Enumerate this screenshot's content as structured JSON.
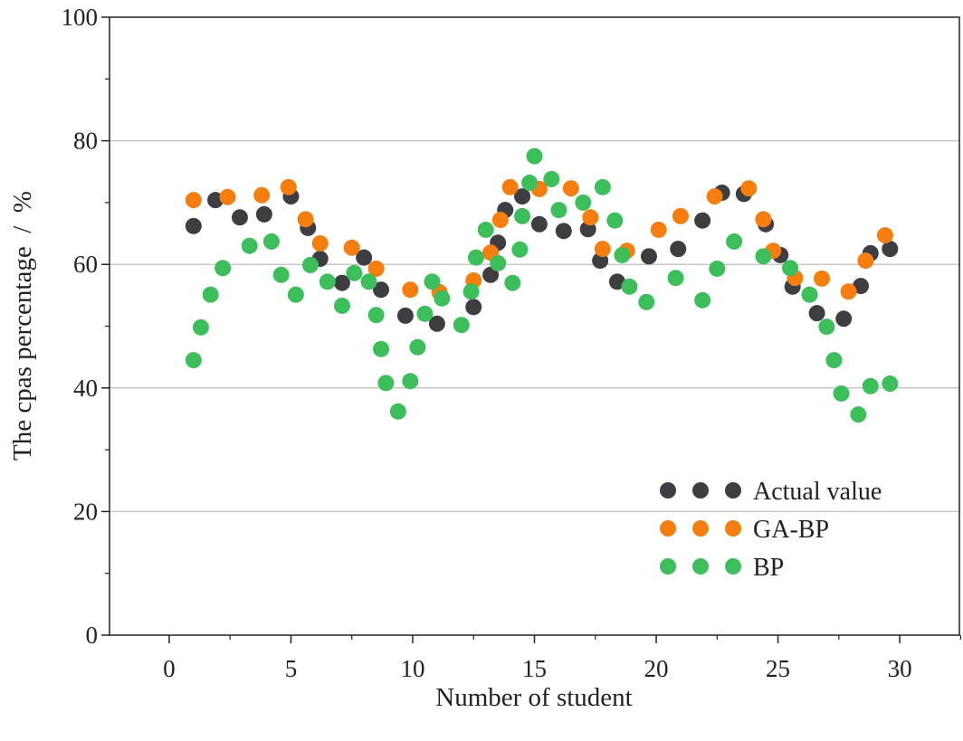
{
  "chart_data": {
    "type": "scatter",
    "title": "",
    "xlabel": "Number of student",
    "ylabel": "The cpas percentage  /  %",
    "xlim": [
      -2.45,
      32.45
    ],
    "ylim": [
      0,
      100
    ],
    "xticks": [
      0,
      5,
      10,
      15,
      20,
      25,
      30
    ],
    "yticks": [
      0,
      20,
      40,
      60,
      80,
      100
    ],
    "grid": "horizontal",
    "legend_position": "bottom-right",
    "series": [
      {
        "name": "Actual value",
        "color": "#3d3d42",
        "points": [
          [
            1.0,
            66.2
          ],
          [
            1.9,
            70.4
          ],
          [
            2.9,
            67.6
          ],
          [
            3.9,
            68.1
          ],
          [
            5.0,
            71.0
          ],
          [
            5.7,
            65.9
          ],
          [
            6.2,
            60.9
          ],
          [
            7.1,
            57.0
          ],
          [
            8.0,
            61.1
          ],
          [
            8.7,
            55.9
          ],
          [
            9.7,
            51.7
          ],
          [
            11.0,
            50.4
          ],
          [
            12.5,
            53.1
          ],
          [
            13.2,
            58.3
          ],
          [
            13.5,
            63.5
          ],
          [
            13.8,
            68.8
          ],
          [
            14.5,
            71.0
          ],
          [
            15.2,
            66.5
          ],
          [
            16.2,
            65.4
          ],
          [
            17.2,
            65.7
          ],
          [
            17.7,
            60.6
          ],
          [
            18.4,
            57.2
          ],
          [
            19.7,
            61.3
          ],
          [
            20.9,
            62.5
          ],
          [
            21.9,
            67.1
          ],
          [
            22.7,
            71.6
          ],
          [
            23.6,
            71.4
          ],
          [
            24.5,
            66.5
          ],
          [
            25.1,
            61.5
          ],
          [
            25.6,
            56.4
          ],
          [
            26.6,
            52.1
          ],
          [
            27.7,
            51.2
          ],
          [
            28.4,
            56.5
          ],
          [
            28.8,
            61.8
          ],
          [
            29.6,
            62.5
          ]
        ]
      },
      {
        "name": "GA-BP",
        "color": "#f57e0f",
        "points": [
          [
            1.0,
            70.4
          ],
          [
            2.4,
            70.9
          ],
          [
            3.8,
            71.2
          ],
          [
            4.9,
            72.5
          ],
          [
            5.6,
            67.3
          ],
          [
            6.2,
            63.4
          ],
          [
            7.5,
            62.7
          ],
          [
            8.5,
            59.3
          ],
          [
            9.9,
            55.9
          ],
          [
            11.1,
            55.5
          ],
          [
            12.5,
            57.4
          ],
          [
            13.2,
            61.9
          ],
          [
            13.6,
            67.2
          ],
          [
            14.0,
            72.5
          ],
          [
            15.2,
            72.2
          ],
          [
            16.5,
            72.3
          ],
          [
            17.3,
            67.6
          ],
          [
            17.8,
            62.5
          ],
          [
            18.8,
            62.2
          ],
          [
            20.1,
            65.6
          ],
          [
            21.0,
            67.8
          ],
          [
            22.4,
            71.0
          ],
          [
            23.8,
            72.3
          ],
          [
            24.4,
            67.3
          ],
          [
            24.8,
            62.2
          ],
          [
            25.7,
            57.8
          ],
          [
            26.8,
            57.7
          ],
          [
            27.9,
            55.6
          ],
          [
            28.6,
            60.6
          ],
          [
            29.4,
            64.7
          ]
        ]
      },
      {
        "name": "BP",
        "color": "#3cbf5a",
        "points": [
          [
            1.0,
            44.5
          ],
          [
            1.3,
            49.8
          ],
          [
            1.7,
            55.1
          ],
          [
            2.2,
            59.4
          ],
          [
            3.3,
            63.0
          ],
          [
            4.2,
            63.7
          ],
          [
            4.6,
            58.3
          ],
          [
            5.2,
            55.1
          ],
          [
            5.8,
            59.9
          ],
          [
            6.5,
            57.2
          ],
          [
            7.1,
            53.3
          ],
          [
            7.6,
            58.6
          ],
          [
            8.2,
            57.2
          ],
          [
            8.5,
            51.8
          ],
          [
            8.7,
            46.3
          ],
          [
            8.9,
            40.8
          ],
          [
            9.4,
            36.2
          ],
          [
            9.9,
            41.1
          ],
          [
            10.2,
            46.6
          ],
          [
            10.5,
            52.0
          ],
          [
            10.8,
            57.2
          ],
          [
            11.2,
            54.5
          ],
          [
            12.0,
            50.2
          ],
          [
            12.4,
            55.6
          ],
          [
            12.6,
            61.1
          ],
          [
            13.0,
            65.6
          ],
          [
            13.5,
            60.2
          ],
          [
            14.1,
            57.0
          ],
          [
            14.4,
            62.4
          ],
          [
            14.5,
            67.8
          ],
          [
            14.8,
            73.2
          ],
          [
            15.0,
            77.5
          ],
          [
            15.7,
            73.8
          ],
          [
            16.0,
            68.8
          ],
          [
            17.0,
            70.0
          ],
          [
            17.8,
            72.5
          ],
          [
            18.3,
            67.1
          ],
          [
            18.6,
            61.5
          ],
          [
            18.9,
            56.4
          ],
          [
            19.6,
            53.9
          ],
          [
            20.8,
            57.8
          ],
          [
            21.9,
            54.2
          ],
          [
            22.5,
            59.3
          ],
          [
            23.2,
            63.7
          ],
          [
            24.4,
            61.3
          ],
          [
            25.5,
            59.4
          ],
          [
            26.3,
            55.1
          ],
          [
            27.0,
            49.9
          ],
          [
            27.3,
            44.5
          ],
          [
            27.6,
            39.1
          ],
          [
            28.3,
            35.7
          ],
          [
            28.8,
            40.3
          ],
          [
            29.6,
            40.7
          ]
        ]
      }
    ]
  }
}
